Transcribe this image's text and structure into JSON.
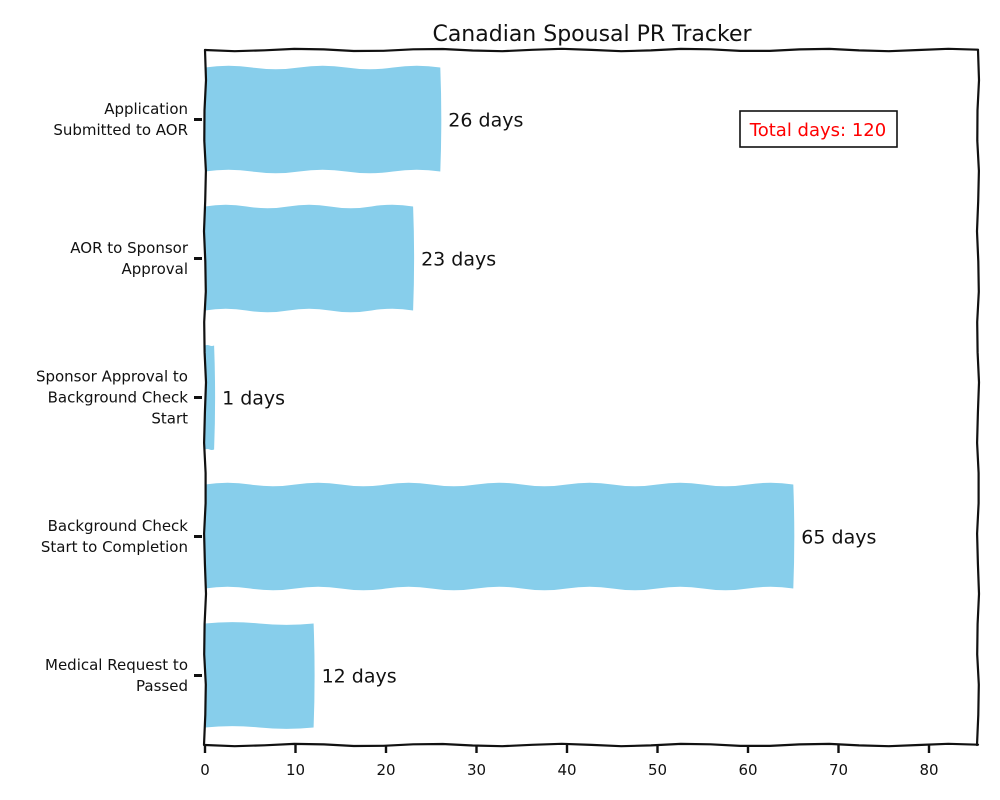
{
  "chart_data": {
    "type": "bar",
    "orientation": "horizontal",
    "title": "Canadian Spousal PR Tracker",
    "xlabel": "",
    "ylabel": "",
    "categories": [
      [
        "Application",
        "Submitted to AOR"
      ],
      [
        "AOR to Sponsor",
        "Approval"
      ],
      [
        "Sponsor Approval to",
        "Background Check",
        "Start"
      ],
      [
        "Background Check",
        "Start to Completion"
      ],
      [
        "Medical Request to",
        "Passed"
      ]
    ],
    "values": [
      26,
      23,
      1,
      65,
      12
    ],
    "value_labels": [
      "26 days",
      "23 days",
      "1 days",
      "65 days",
      "12 days"
    ],
    "xlim": [
      0,
      86
    ],
    "xticks": [
      0,
      10,
      20,
      30,
      40,
      50,
      60,
      70,
      80
    ],
    "grid": false,
    "bar_color": "#87CEEB",
    "annotation": {
      "text": "Total days: 120",
      "color": "#ff0000"
    }
  }
}
